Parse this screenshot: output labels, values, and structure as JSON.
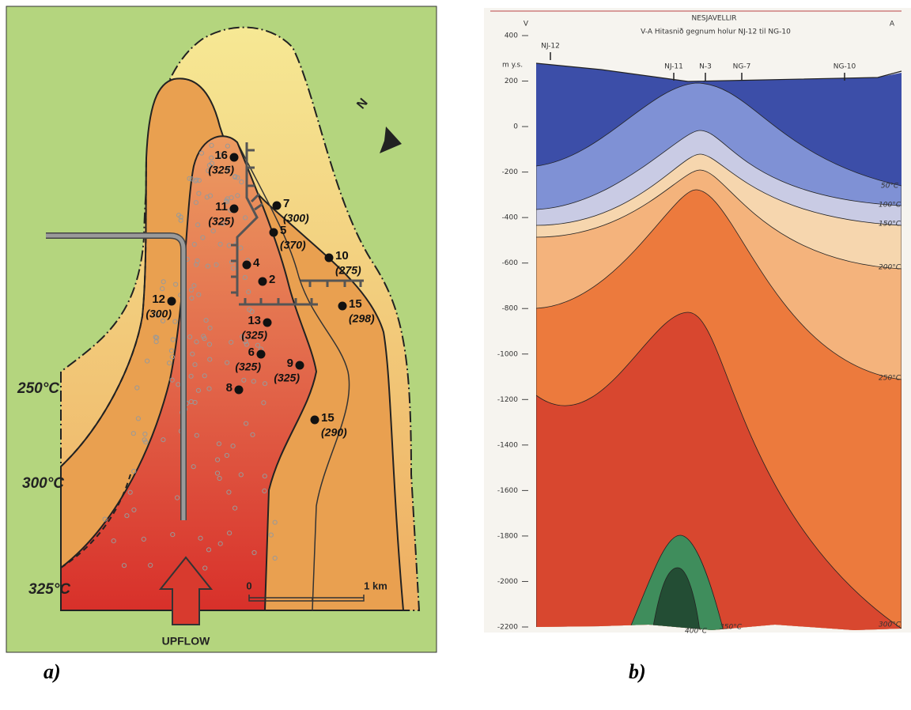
{
  "panel_a": {
    "caption": "a)",
    "isotherm_labels": [
      "250°C",
      "300°C",
      "325°C"
    ],
    "north": "N",
    "wells": [
      {
        "id": "16",
        "temp": "(325)"
      },
      {
        "id": "11",
        "temp": "(325)"
      },
      {
        "id": "7",
        "temp": "(300)"
      },
      {
        "id": "5",
        "temp": "(370)"
      },
      {
        "id": "10",
        "temp": "(275)"
      },
      {
        "id": "4"
      },
      {
        "id": "2"
      },
      {
        "id": "12",
        "temp": "(300)"
      },
      {
        "id": "15",
        "temp": "(298)"
      },
      {
        "id": "13",
        "temp": "(325)"
      },
      {
        "id": "6",
        "temp": "(325)"
      },
      {
        "id": "9",
        "temp": "(325)"
      },
      {
        "id": "8"
      },
      {
        "id": "15",
        "temp": "(290)"
      }
    ],
    "scale": [
      "0",
      "1 km"
    ],
    "upflow": "UPFLOW"
  },
  "panel_b": {
    "caption": "b)",
    "title": "NESJAVELLIR",
    "subtitle": "V-A Hitasnið gegnum holur NJ-12 til NG-10",
    "west": "V",
    "east": "A",
    "depth_unit": "m y.s.",
    "depth_ticks": [
      400,
      200,
      0,
      -200,
      -400,
      -600,
      -800,
      -1000,
      -1200,
      -1400,
      -1600,
      -1800,
      -2000,
      -2200
    ],
    "wells": [
      "NJ-12",
      "NJ-11",
      "N-3",
      "NG-7",
      "NG-10"
    ],
    "isotherm_labels": [
      "50°C",
      "100°C",
      "150°C",
      "200°C",
      "250°C",
      "300°C",
      "400°C",
      "350°C"
    ]
  }
}
